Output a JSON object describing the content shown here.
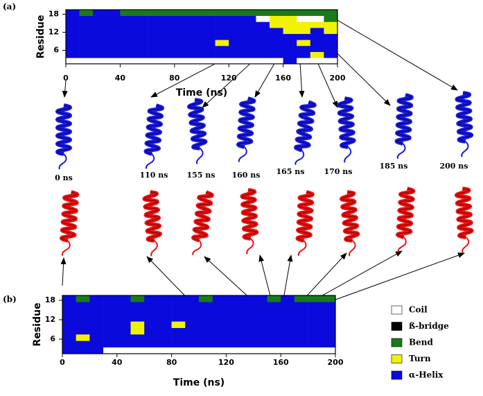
{
  "chart_data": [
    {
      "type": "heatmap",
      "panel_label": "(a)",
      "xlabel": "Time (ns)",
      "ylabel": "Residue",
      "xlim": [
        0,
        200
      ],
      "xticks": [
        0,
        40,
        80,
        120,
        160,
        200
      ],
      "ylim": [
        1.5,
        19.5
      ],
      "yticks": [
        6,
        12,
        18
      ],
      "x_edges": [
        0,
        10,
        20,
        30,
        40,
        50,
        60,
        70,
        80,
        90,
        100,
        110,
        120,
        130,
        140,
        150,
        160,
        170,
        180,
        190,
        200
      ],
      "y_edges": [
        1.5,
        3.5,
        5.5,
        7.5,
        9.5,
        11.5,
        13.5,
        15.5,
        17.5,
        19.5
      ],
      "z": [
        [
          0,
          0,
          0,
          0,
          0,
          0,
          0,
          0,
          0,
          0,
          0,
          0,
          0,
          0,
          0,
          0,
          4,
          0,
          0,
          0
        ],
        [
          4,
          4,
          4,
          4,
          4,
          4,
          4,
          4,
          4,
          4,
          4,
          4,
          4,
          4,
          4,
          4,
          4,
          4,
          3,
          4
        ],
        [
          4,
          4,
          4,
          4,
          4,
          4,
          4,
          4,
          4,
          4,
          4,
          4,
          4,
          4,
          4,
          4,
          4,
          4,
          4,
          4
        ],
        [
          4,
          4,
          4,
          4,
          4,
          4,
          4,
          4,
          4,
          4,
          4,
          3,
          4,
          4,
          4,
          4,
          4,
          3,
          4,
          4
        ],
        [
          4,
          4,
          4,
          4,
          4,
          4,
          4,
          4,
          4,
          4,
          4,
          4,
          4,
          4,
          4,
          4,
          4,
          4,
          4,
          4
        ],
        [
          4,
          4,
          4,
          4,
          4,
          4,
          4,
          4,
          4,
          4,
          4,
          4,
          4,
          4,
          4,
          4,
          3,
          3,
          4,
          3
        ],
        [
          4,
          4,
          4,
          4,
          4,
          4,
          4,
          4,
          4,
          4,
          4,
          4,
          4,
          4,
          4,
          3,
          3,
          3,
          3,
          3
        ],
        [
          4,
          4,
          4,
          4,
          4,
          4,
          4,
          4,
          4,
          4,
          4,
          4,
          4,
          4,
          0,
          3,
          3,
          0,
          0,
          2
        ],
        [
          4,
          2,
          4,
          4,
          2,
          2,
          2,
          2,
          2,
          2,
          2,
          2,
          2,
          2,
          2,
          2,
          2,
          2,
          2,
          2
        ]
      ]
    },
    {
      "type": "heatmap",
      "panel_label": "(b)",
      "xlabel": "Time (ns)",
      "ylabel": "Residue",
      "xlim": [
        0,
        200
      ],
      "xticks": [
        0,
        40,
        80,
        120,
        160,
        200
      ],
      "ylim": [
        1.5,
        19.5
      ],
      "yticks": [
        6,
        12,
        18
      ],
      "x_edges": [
        0,
        10,
        20,
        30,
        40,
        50,
        60,
        70,
        80,
        90,
        100,
        110,
        120,
        130,
        140,
        150,
        160,
        170,
        180,
        190,
        200
      ],
      "y_edges": [
        1.5,
        3.5,
        5.5,
        7.5,
        9.5,
        11.5,
        13.5,
        15.5,
        17.5,
        19.5
      ],
      "z": [
        [
          4,
          4,
          4,
          0,
          0,
          0,
          0,
          0,
          0,
          0,
          0,
          0,
          0,
          0,
          0,
          0,
          0,
          0,
          0,
          0
        ],
        [
          4,
          4,
          4,
          4,
          4,
          4,
          4,
          4,
          4,
          4,
          4,
          4,
          4,
          4,
          4,
          4,
          4,
          4,
          4,
          4
        ],
        [
          4,
          3,
          4,
          4,
          4,
          4,
          4,
          4,
          4,
          4,
          4,
          4,
          4,
          4,
          4,
          4,
          4,
          4,
          4,
          4
        ],
        [
          4,
          4,
          4,
          4,
          4,
          3,
          4,
          4,
          4,
          4,
          4,
          4,
          4,
          4,
          4,
          4,
          4,
          4,
          4,
          4
        ],
        [
          4,
          4,
          4,
          4,
          4,
          3,
          4,
          4,
          3,
          4,
          4,
          4,
          4,
          4,
          4,
          4,
          4,
          4,
          4,
          4
        ],
        [
          4,
          4,
          4,
          4,
          4,
          4,
          4,
          4,
          4,
          4,
          4,
          4,
          4,
          4,
          4,
          4,
          4,
          4,
          4,
          4
        ],
        [
          4,
          4,
          4,
          4,
          4,
          4,
          4,
          4,
          4,
          4,
          4,
          4,
          4,
          4,
          4,
          4,
          4,
          4,
          4,
          4
        ],
        [
          4,
          4,
          4,
          4,
          4,
          4,
          4,
          4,
          4,
          4,
          4,
          4,
          4,
          4,
          4,
          4,
          4,
          4,
          4,
          4
        ],
        [
          4,
          2,
          4,
          4,
          4,
          2,
          4,
          4,
          4,
          4,
          2,
          4,
          4,
          4,
          4,
          2,
          4,
          2,
          2,
          2
        ]
      ]
    }
  ],
  "legend": {
    "states": [
      {
        "name": "Coil",
        "color": "#ffffff"
      },
      {
        "name": "ß-bridge",
        "color": "#000000"
      },
      {
        "name": "Bend",
        "color": "#1a7a1a"
      },
      {
        "name": "Turn",
        "color": "#f2f200"
      },
      {
        "name": "α-Helix",
        "color": "#0a0adc"
      }
    ]
  },
  "snapshots": {
    "labels": [
      "0 ns",
      "110 ns",
      "155 ns",
      "160 ns",
      "165 ns",
      "170 ns",
      "185 ns",
      "200 ns"
    ]
  }
}
